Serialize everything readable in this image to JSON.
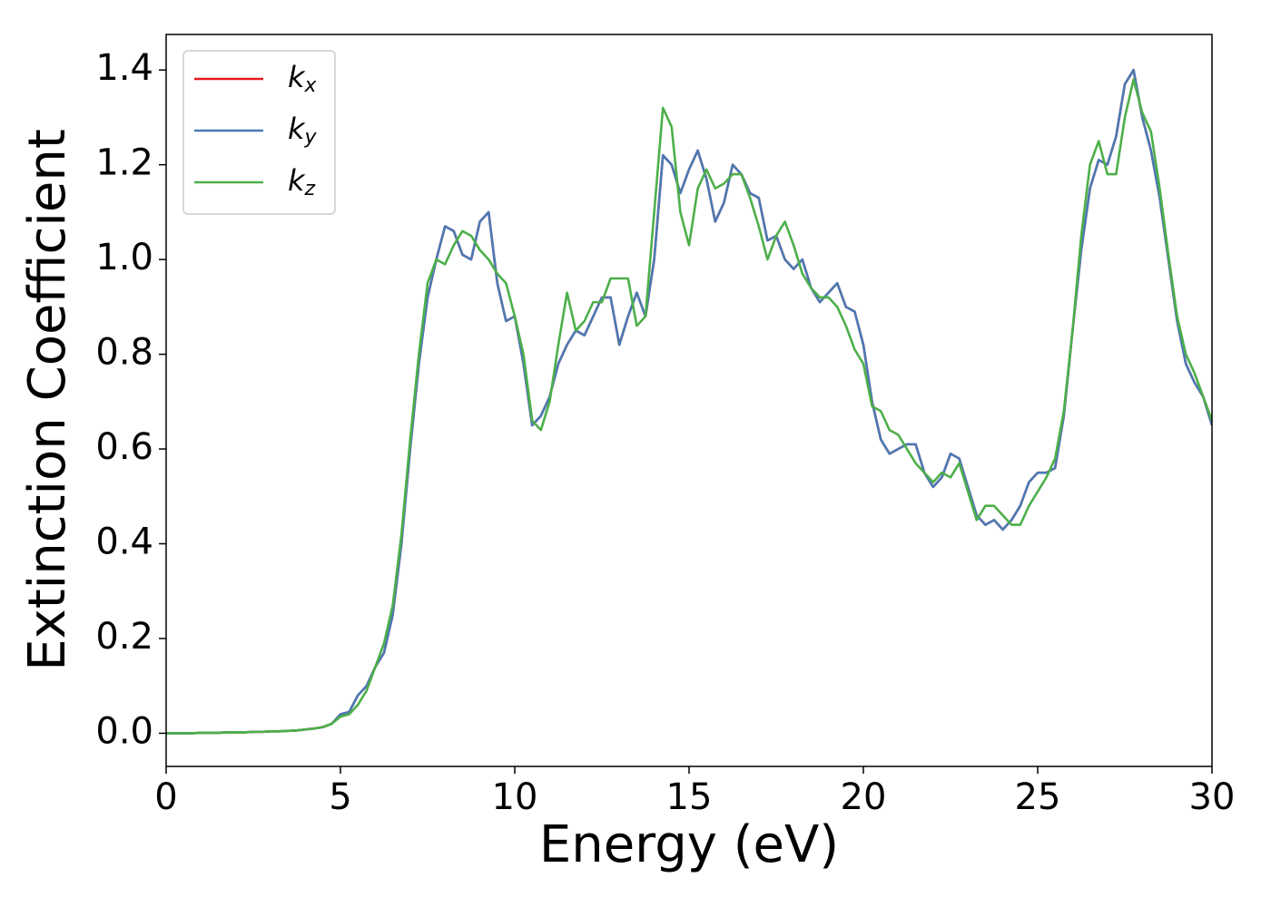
{
  "chart_data": {
    "type": "line",
    "xlabel": "Energy (eV)",
    "ylabel": "Extinction Coefficient",
    "xlim": [
      0,
      30
    ],
    "ylim": [
      -0.07,
      1.475
    ],
    "xticks": [
      0,
      5,
      10,
      15,
      20,
      25,
      30
    ],
    "yticks": [
      {
        "value": 0,
        "label": "0.0"
      },
      0.2,
      0.4,
      0.6,
      0.8,
      {
        "value": 1,
        "label": "1.0"
      },
      1.2,
      1.4
    ],
    "legend": "upper left",
    "x": [
      0,
      0.25,
      0.5,
      0.75,
      1,
      1.25,
      1.5,
      1.75,
      2,
      2.25,
      2.5,
      2.75,
      3,
      3.25,
      3.5,
      3.75,
      4,
      4.25,
      4.5,
      4.75,
      5,
      5.25,
      5.5,
      5.75,
      6,
      6.25,
      6.5,
      6.75,
      7,
      7.25,
      7.5,
      7.75,
      8,
      8.25,
      8.5,
      8.75,
      9,
      9.25,
      9.5,
      9.75,
      10,
      10.25,
      10.5,
      10.75,
      11,
      11.25,
      11.5,
      11.75,
      12,
      12.25,
      12.5,
      12.75,
      13,
      13.25,
      13.5,
      13.75,
      14,
      14.25,
      14.5,
      14.75,
      15,
      15.25,
      15.5,
      15.75,
      16,
      16.25,
      16.5,
      16.75,
      17,
      17.25,
      17.5,
      17.75,
      18,
      18.25,
      18.5,
      18.75,
      19,
      19.25,
      19.5,
      19.75,
      20,
      20.25,
      20.5,
      20.75,
      21,
      21.25,
      21.5,
      21.75,
      22,
      22.25,
      22.5,
      22.75,
      23,
      23.25,
      23.5,
      23.75,
      24,
      24.25,
      24.5,
      24.75,
      25,
      25.25,
      25.5,
      25.75,
      26,
      26.25,
      26.5,
      26.75,
      27,
      27.25,
      27.5,
      27.75,
      28,
      28.25,
      28.5,
      28.75,
      29,
      29.25,
      29.5,
      29.75,
      30
    ],
    "series": [
      {
        "name": "kx",
        "color": "#e41a1c",
        "values": [
          0,
          0,
          0,
          0,
          0.001,
          0.001,
          0.001,
          0.002,
          0.002,
          0.002,
          0.003,
          0.003,
          0.004,
          0.004,
          0.005,
          0.006,
          0.008,
          0.01,
          0.013,
          0.02,
          0.04,
          0.045,
          0.08,
          0.1,
          0.14,
          0.17,
          0.25,
          0.4,
          0.6,
          0.78,
          0.92,
          1.0,
          1.07,
          1.06,
          1.01,
          1.0,
          1.08,
          1.1,
          0.95,
          0.87,
          0.88,
          0.78,
          0.65,
          0.67,
          0.71,
          0.78,
          0.82,
          0.85,
          0.84,
          0.88,
          0.92,
          0.92,
          0.82,
          0.88,
          0.93,
          0.88,
          1.0,
          1.22,
          1.2,
          1.14,
          1.19,
          1.23,
          1.17,
          1.08,
          1.12,
          1.2,
          1.18,
          1.14,
          1.13,
          1.04,
          1.05,
          1.0,
          0.98,
          1.0,
          0.94,
          0.91,
          0.93,
          0.95,
          0.9,
          0.89,
          0.82,
          0.7,
          0.62,
          0.59,
          0.6,
          0.61,
          0.61,
          0.55,
          0.52,
          0.54,
          0.59,
          0.58,
          0.52,
          0.46,
          0.44,
          0.45,
          0.43,
          0.45,
          0.48,
          0.53,
          0.55,
          0.55,
          0.56,
          0.67,
          0.85,
          1.02,
          1.15,
          1.21,
          1.2,
          1.26,
          1.37,
          1.4,
          1.3,
          1.23,
          1.13,
          1.0,
          0.87,
          0.78,
          0.74,
          0.71,
          0.65
        ]
      },
      {
        "name": "ky",
        "color": "#4a7ab4",
        "values": [
          0,
          0,
          0,
          0,
          0.001,
          0.001,
          0.001,
          0.002,
          0.002,
          0.002,
          0.003,
          0.003,
          0.004,
          0.004,
          0.005,
          0.006,
          0.008,
          0.01,
          0.013,
          0.02,
          0.04,
          0.045,
          0.08,
          0.1,
          0.14,
          0.17,
          0.25,
          0.4,
          0.6,
          0.78,
          0.92,
          1.0,
          1.07,
          1.06,
          1.01,
          1.0,
          1.08,
          1.1,
          0.95,
          0.87,
          0.88,
          0.78,
          0.65,
          0.67,
          0.71,
          0.78,
          0.82,
          0.85,
          0.84,
          0.88,
          0.92,
          0.92,
          0.82,
          0.88,
          0.93,
          0.88,
          1.0,
          1.22,
          1.2,
          1.14,
          1.19,
          1.23,
          1.17,
          1.08,
          1.12,
          1.2,
          1.18,
          1.14,
          1.13,
          1.04,
          1.05,
          1.0,
          0.98,
          1.0,
          0.94,
          0.91,
          0.93,
          0.95,
          0.9,
          0.89,
          0.82,
          0.7,
          0.62,
          0.59,
          0.6,
          0.61,
          0.61,
          0.55,
          0.52,
          0.54,
          0.59,
          0.58,
          0.52,
          0.46,
          0.44,
          0.45,
          0.43,
          0.45,
          0.48,
          0.53,
          0.55,
          0.55,
          0.56,
          0.67,
          0.85,
          1.02,
          1.15,
          1.21,
          1.2,
          1.26,
          1.37,
          1.4,
          1.3,
          1.23,
          1.13,
          1.0,
          0.87,
          0.78,
          0.74,
          0.71,
          0.65
        ]
      },
      {
        "name": "kz",
        "color": "#4daf4a",
        "values": [
          0,
          0,
          0,
          0,
          0.001,
          0.001,
          0.001,
          0.002,
          0.002,
          0.002,
          0.003,
          0.003,
          0.004,
          0.004,
          0.005,
          0.006,
          0.008,
          0.01,
          0.013,
          0.02,
          0.035,
          0.04,
          0.06,
          0.09,
          0.14,
          0.19,
          0.27,
          0.42,
          0.62,
          0.8,
          0.95,
          1.0,
          0.99,
          1.03,
          1.06,
          1.05,
          1.02,
          1.0,
          0.97,
          0.95,
          0.88,
          0.8,
          0.66,
          0.64,
          0.7,
          0.82,
          0.93,
          0.85,
          0.87,
          0.91,
          0.91,
          0.96,
          0.96,
          0.96,
          0.86,
          0.88,
          1.1,
          1.32,
          1.28,
          1.1,
          1.03,
          1.15,
          1.19,
          1.15,
          1.16,
          1.18,
          1.18,
          1.13,
          1.07,
          1.0,
          1.05,
          1.08,
          1.03,
          0.97,
          0.94,
          0.92,
          0.92,
          0.9,
          0.86,
          0.81,
          0.78,
          0.69,
          0.68,
          0.64,
          0.63,
          0.6,
          0.57,
          0.55,
          0.53,
          0.55,
          0.54,
          0.57,
          0.51,
          0.45,
          0.48,
          0.48,
          0.46,
          0.44,
          0.44,
          0.48,
          0.51,
          0.54,
          0.58,
          0.68,
          0.85,
          1.05,
          1.2,
          1.25,
          1.18,
          1.18,
          1.3,
          1.38,
          1.31,
          1.27,
          1.15,
          1.01,
          0.88,
          0.8,
          0.76,
          0.71,
          0.66
        ]
      }
    ]
  }
}
